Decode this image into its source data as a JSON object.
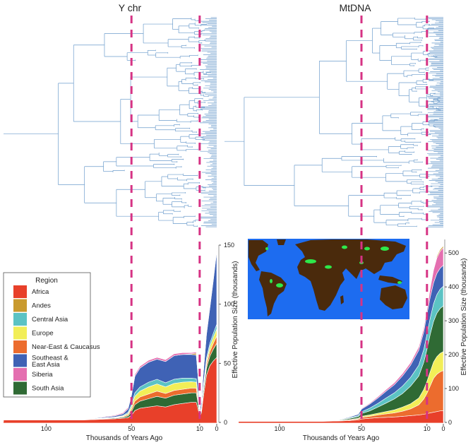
{
  "panel_titles": {
    "left": "Y chr",
    "right": "MtDNA"
  },
  "legend": {
    "title": "Region",
    "items": [
      {
        "label": "Africa",
        "color": "#e8402a"
      },
      {
        "label": "Andes",
        "color": "#c99a2e"
      },
      {
        "label": "Central Asia",
        "color": "#5cc3c4"
      },
      {
        "label": "Europe",
        "color": "#f2ee57"
      },
      {
        "label": "Near-East & Caucasus",
        "color": "#ec6c2e"
      },
      {
        "label": "Southeast &\nEast Asia",
        "color": "#3f62b5"
      },
      {
        "label": "Siberia",
        "color": "#e46fb0"
      },
      {
        "label": "South Asia",
        "color": "#2f6a34"
      }
    ]
  },
  "colors": {
    "tree": "#6c9ccc",
    "marker": "#d63384",
    "map_ocean": "#1d6cf0",
    "map_land": "#4a2a0c",
    "map_highlight": "#2ee84a"
  },
  "chart_data": [
    {
      "type": "area",
      "subtype": "stacked",
      "panel": "Y chr",
      "xlabel": "Thousands of Years Ago",
      "ylabel": "Effective Population Size (thousands)",
      "x_ticks": [
        100,
        50,
        10,
        0
      ],
      "y_ticks": [
        0,
        50,
        100,
        150
      ],
      "xlim": [
        125,
        0
      ],
      "ylim": [
        0,
        150
      ],
      "reference_lines_kya": [
        50,
        10
      ],
      "x": [
        125,
        80,
        70,
        60,
        55,
        52,
        50,
        48,
        45,
        40,
        35,
        30,
        25,
        20,
        15,
        12,
        11,
        10,
        9,
        8,
        6,
        4,
        2,
        0
      ],
      "series": [
        {
          "name": "Africa",
          "values": [
            2,
            2,
            2.5,
            3,
            3.5,
            4,
            6,
            10,
            12,
            13,
            14,
            13,
            15,
            16,
            17,
            17,
            12,
            5,
            8,
            20,
            40,
            48,
            52,
            55
          ]
        },
        {
          "name": "South Asia",
          "values": [
            0,
            0,
            0.3,
            0.5,
            0.8,
            1.5,
            3,
            5,
            6,
            7,
            8,
            7.5,
            8,
            8,
            8,
            8,
            5,
            1,
            2,
            4,
            6,
            8,
            10,
            12
          ]
        },
        {
          "name": "Near-East & Caucasus",
          "values": [
            0,
            0,
            0.2,
            0.3,
            0.5,
            1,
            2,
            3,
            3.5,
            4,
            4.5,
            4,
            4,
            4,
            4,
            4,
            3,
            0.5,
            1,
            2,
            3,
            4,
            5,
            6
          ]
        },
        {
          "name": "Europe",
          "values": [
            0,
            0,
            0.2,
            0.3,
            0.5,
            1,
            2,
            4,
            5,
            6,
            6,
            5.5,
            6,
            6,
            5.5,
            5,
            3,
            0.5,
            1,
            2,
            3,
            4,
            5,
            6
          ]
        },
        {
          "name": "Central Asia",
          "values": [
            0,
            0,
            0.2,
            0.3,
            0.5,
            1,
            2,
            3,
            3.5,
            4,
            4,
            3.5,
            3.5,
            3.5,
            3,
            3,
            2,
            0.5,
            1,
            1.5,
            2.5,
            3,
            3.5,
            4
          ]
        },
        {
          "name": "Southeast &\nEast Asia",
          "values": [
            0,
            0,
            0.5,
            1,
            1.5,
            3,
            8,
            14,
            16,
            17,
            17,
            18,
            20,
            20,
            20,
            20,
            15,
            2,
            5,
            10,
            20,
            30,
            45,
            62
          ]
        },
        {
          "name": "Andes",
          "values": [
            0,
            0,
            0,
            0,
            0,
            0,
            0,
            0,
            0,
            0,
            0,
            0,
            0,
            0,
            0.5,
            1.5,
            1,
            0.2,
            0.5,
            1,
            1.5,
            1.5,
            1.5,
            1.5
          ]
        },
        {
          "name": "Siberia",
          "values": [
            0,
            0,
            0.3,
            0.5,
            0.8,
            1.2,
            1.5,
            1.5,
            1.5,
            1.5,
            1.5,
            1.5,
            1.5,
            1.5,
            1,
            1,
            0.5,
            0.2,
            0.5,
            0.8,
            1,
            1,
            1,
            1
          ]
        }
      ]
    },
    {
      "type": "area",
      "subtype": "stacked",
      "panel": "MtDNA",
      "xlabel": "Thousands of Years Ago",
      "ylabel": "Effective Population Size (thousands)",
      "x_ticks": [
        100,
        50,
        10,
        0
      ],
      "y_ticks": [
        0,
        100,
        200,
        300,
        400,
        500
      ],
      "xlim": [
        125,
        0
      ],
      "ylim": [
        0,
        540
      ],
      "reference_lines_kya": [
        50,
        10
      ],
      "x": [
        125,
        90,
        75,
        65,
        58,
        52,
        50,
        45,
        40,
        35,
        30,
        25,
        20,
        15,
        12,
        10,
        8,
        6,
        4,
        2,
        0
      ],
      "series": [
        {
          "name": "Africa",
          "values": [
            3,
            3,
            3,
            4,
            5,
            7,
            10,
            12,
            14,
            15,
            16,
            18,
            20,
            22,
            24,
            26,
            28,
            30,
            32,
            34,
            35
          ]
        },
        {
          "name": "Near-East & Caucasus",
          "values": [
            0,
            0,
            0,
            1,
            2,
            3,
            5,
            6,
            8,
            10,
            12,
            15,
            20,
            30,
            45,
            60,
            80,
            100,
            110,
            115,
            118
          ]
        },
        {
          "name": "Europe",
          "values": [
            0,
            0,
            0,
            0.5,
            1,
            2,
            3,
            4,
            5,
            7,
            9,
            12,
            15,
            20,
            28,
            35,
            42,
            48,
            52,
            55,
            56
          ]
        },
        {
          "name": "South Asia",
          "values": [
            0,
            0,
            0,
            1,
            3,
            5,
            8,
            12,
            18,
            25,
            32,
            40,
            52,
            65,
            80,
            95,
            110,
            120,
            128,
            132,
            135
          ]
        },
        {
          "name": "Central Asia",
          "values": [
            0,
            0,
            0,
            1,
            2,
            3,
            5,
            8,
            11,
            15,
            18,
            22,
            26,
            32,
            38,
            44,
            48,
            52,
            55,
            57,
            58
          ]
        },
        {
          "name": "Southeast &\nEast Asia",
          "values": [
            0,
            0,
            0,
            1,
            2,
            4,
            8,
            12,
            16,
            20,
            24,
            30,
            36,
            44,
            52,
            60,
            62,
            62,
            62,
            62,
            62
          ]
        },
        {
          "name": "Siberia",
          "values": [
            0,
            0,
            0,
            0.3,
            0.5,
            1,
            2,
            3,
            4,
            5,
            6,
            7,
            8,
            10,
            12,
            14,
            26,
            38,
            46,
            50,
            52
          ]
        },
        {
          "name": "Andes",
          "values": [
            0,
            0,
            0,
            0,
            0,
            0,
            0,
            0,
            0,
            0,
            0,
            0,
            0,
            0,
            1,
            2,
            3,
            4,
            5,
            5,
            5
          ]
        }
      ]
    }
  ]
}
